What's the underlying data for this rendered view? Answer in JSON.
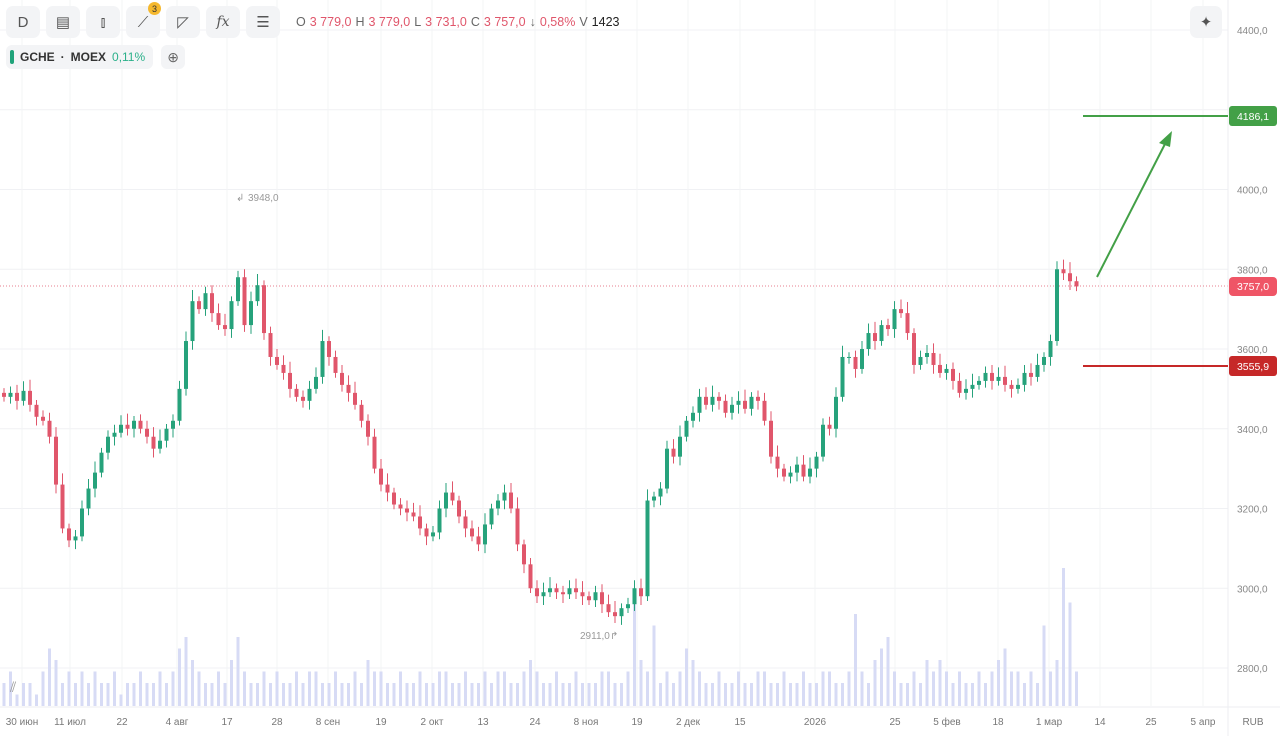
{
  "toolbar": {
    "interval": "D",
    "drawings_badge": "3",
    "fx": "fx",
    "ohlc": {
      "o_label": "O",
      "o": "3 779,0",
      "h_label": "H",
      "h": "3 779,0",
      "l_label": "L",
      "l": "3 731,0",
      "c_label": "C",
      "c": "3 757,0",
      "change_arrow": "↓",
      "change": "0,58%",
      "v_label": "V",
      "v": "1423"
    }
  },
  "legend": {
    "symbol": "GCHE",
    "sep": "·",
    "exchange": "MOEX",
    "change": "0,11%"
  },
  "price_axis": {
    "labels": [
      "4400,0",
      "4000,0",
      "3800,0",
      "3600,0",
      "3400,0",
      "3200,0",
      "3000,0",
      "2800,0"
    ],
    "currency": "RUB"
  },
  "time_axis": {
    "labels": [
      "30 июн",
      "11 июл",
      "22",
      "4 авг",
      "17",
      "28",
      "8 сен",
      "19",
      "2 окт",
      "13",
      "24",
      "8 ноя",
      "19",
      "2 дек",
      "15",
      "2026",
      "25",
      "5 фев",
      "18",
      "1 мар",
      "14",
      "25",
      "5 апр"
    ]
  },
  "markers": {
    "high": "3948,0",
    "low": "2911,0",
    "last_price": "3757,0",
    "target_level": "4186,1",
    "stop_level": "3555,9"
  },
  "colors": {
    "up": "#26a27b",
    "down": "#e0566b",
    "target": "#43a047",
    "stop": "#c62828",
    "volume": "#d7dbf5"
  },
  "chart_data": {
    "type": "candlestick",
    "ylim": [
      2700,
      4450
    ],
    "closes": [
      3480,
      3490,
      3470,
      3495,
      3460,
      3430,
      3420,
      3380,
      3260,
      3150,
      3120,
      3130,
      3200,
      3250,
      3290,
      3340,
      3380,
      3390,
      3410,
      3400,
      3420,
      3400,
      3380,
      3350,
      3370,
      3400,
      3420,
      3500,
      3620,
      3720,
      3700,
      3740,
      3690,
      3660,
      3650,
      3720,
      3780,
      3660,
      3720,
      3760,
      3640,
      3580,
      3560,
      3540,
      3500,
      3480,
      3470,
      3500,
      3530,
      3620,
      3580,
      3540,
      3510,
      3490,
      3460,
      3420,
      3380,
      3300,
      3260,
      3240,
      3210,
      3200,
      3190,
      3180,
      3150,
      3130,
      3140,
      3200,
      3240,
      3220,
      3180,
      3150,
      3130,
      3110,
      3160,
      3200,
      3220,
      3240,
      3200,
      3110,
      3060,
      3000,
      2980,
      2990,
      3000,
      2990,
      2985,
      3000,
      2990,
      2980,
      2970,
      2990,
      2960,
      2940,
      2930,
      2950,
      2960,
      3000,
      2980,
      3220,
      3230,
      3250,
      3350,
      3330,
      3380,
      3420,
      3440,
      3480,
      3460,
      3480,
      3470,
      3440,
      3460,
      3470,
      3450,
      3480,
      3470,
      3420,
      3330,
      3300,
      3280,
      3290,
      3310,
      3280,
      3300,
      3330,
      3410,
      3400,
      3480,
      3580,
      3580,
      3550,
      3600,
      3640,
      3620,
      3660,
      3650,
      3700,
      3690,
      3640,
      3560,
      3580,
      3590,
      3560,
      3540,
      3550,
      3520,
      3490,
      3500,
      3510,
      3520,
      3540,
      3520,
      3530,
      3510,
      3500,
      3510,
      3540,
      3530,
      3560,
      3580,
      3620,
      3800,
      3790,
      3770,
      3757
    ],
    "volumes": [
      2,
      3,
      1,
      2,
      2,
      1,
      3,
      5,
      4,
      2,
      3,
      2,
      3,
      2,
      3,
      2,
      2,
      3,
      1,
      2,
      2,
      3,
      2,
      2,
      3,
      2,
      3,
      5,
      6,
      4,
      3,
      2,
      2,
      3,
      2,
      4,
      6,
      3,
      2,
      2,
      3,
      2,
      3,
      2,
      2,
      3,
      2,
      3,
      3,
      2,
      2,
      3,
      2,
      2,
      3,
      2,
      4,
      3,
      3,
      2,
      2,
      3,
      2,
      2,
      3,
      2,
      2,
      3,
      3,
      2,
      2,
      3,
      2,
      2,
      3,
      2,
      3,
      3,
      2,
      2,
      3,
      4,
      3,
      2,
      2,
      3,
      2,
      2,
      3,
      2,
      2,
      2,
      3,
      3,
      2,
      2,
      3,
      9,
      4,
      3,
      7,
      2,
      3,
      2,
      3,
      5,
      4,
      3,
      2,
      2,
      3,
      2,
      2,
      3,
      2,
      2,
      3,
      3,
      2,
      2,
      3,
      2,
      2,
      3,
      2,
      2,
      3,
      3,
      2,
      2,
      3,
      8,
      3,
      2,
      4,
      5,
      6,
      3,
      2,
      2,
      3,
      2,
      4,
      3,
      4,
      3,
      2,
      3,
      2,
      2,
      3,
      2,
      3,
      4,
      5,
      3,
      3,
      2,
      3,
      2,
      7,
      3,
      4,
      12,
      9,
      3
    ]
  }
}
